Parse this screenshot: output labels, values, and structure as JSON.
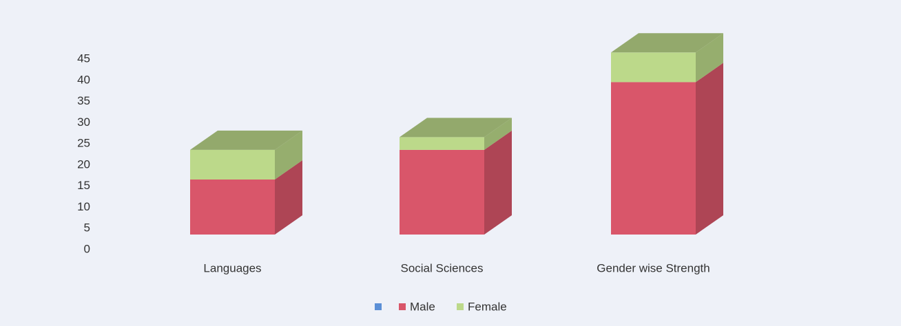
{
  "chart_data": {
    "type": "bar3d_stacked",
    "categories": [
      "Languages",
      "Social Sciences",
      "Gender wise Strength"
    ],
    "series": [
      {
        "name": "Male",
        "color": "#d9566a",
        "values": [
          13,
          20,
          36
        ]
      },
      {
        "name": "Female",
        "color": "#bcd98a",
        "values": [
          7,
          3,
          7
        ]
      }
    ],
    "ylim": [
      0,
      45
    ],
    "yticks": [
      0,
      5,
      10,
      15,
      20,
      25,
      30,
      35,
      40,
      45
    ],
    "grid": false
  }
}
